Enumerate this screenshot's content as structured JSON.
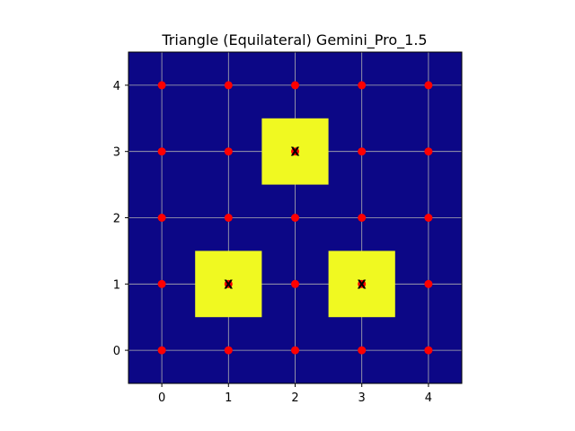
{
  "chart_data": {
    "type": "heatmap",
    "title": "Triangle (Equilateral) Gemini_Pro_1.5",
    "xlabel": "",
    "ylabel": "",
    "xlim": [
      -0.5,
      4.5
    ],
    "ylim": [
      -0.5,
      4.5
    ],
    "xticks": [
      0,
      1,
      2,
      3,
      4
    ],
    "yticks": [
      0,
      1,
      2,
      3,
      4
    ],
    "grid": true,
    "background_color": "#0c0786",
    "highlight_color": "#f0f921",
    "point_color": "#ff0000",
    "highlighted_cells": [
      {
        "x": 1,
        "y": 1,
        "label": "X"
      },
      {
        "x": 3,
        "y": 1,
        "label": "X"
      },
      {
        "x": 2,
        "y": 3,
        "label": "X"
      }
    ],
    "points": {
      "x": [
        0,
        1,
        2,
        3,
        4
      ],
      "y": [
        0,
        1,
        2,
        3,
        4
      ]
    }
  }
}
